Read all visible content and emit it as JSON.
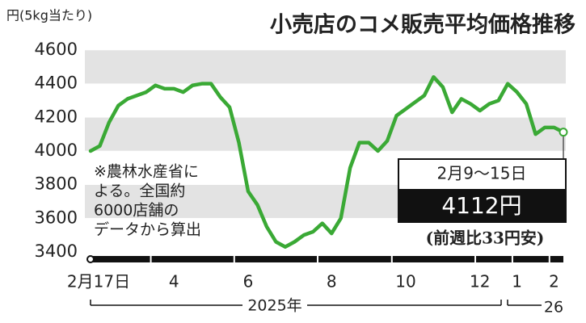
{
  "chart_data": {
    "type": "line",
    "title": "小売店のコメ販売平均価格推移",
    "unit_label": "円(5kg当たり)",
    "categories": [
      "2月17日",
      null,
      null,
      null,
      null,
      null,
      null,
      null,
      null,
      "4",
      null,
      null,
      null,
      null,
      null,
      null,
      null,
      "6",
      null,
      null,
      null,
      null,
      null,
      null,
      null,
      null,
      "8",
      null,
      null,
      null,
      null,
      null,
      null,
      null,
      "10",
      null,
      null,
      null,
      null,
      null,
      null,
      null,
      "12",
      null,
      null,
      null,
      "1",
      null,
      null,
      null,
      "2",
      null
    ],
    "year_labels": [
      "2025年",
      "26"
    ],
    "values": [
      4000,
      4030,
      4170,
      4270,
      4310,
      4330,
      4350,
      4390,
      4370,
      4370,
      4350,
      4390,
      4400,
      4400,
      4320,
      4260,
      4050,
      3760,
      3680,
      3550,
      3460,
      3430,
      3460,
      3500,
      3520,
      3570,
      3510,
      3600,
      3900,
      4050,
      4050,
      4000,
      4060,
      4210,
      4250,
      4290,
      4330,
      4440,
      4380,
      4230,
      4310,
      4280,
      4240,
      4280,
      4300,
      4400,
      4350,
      4280,
      4100,
      4140,
      4140,
      4112
    ],
    "value_labels": [
      null,
      null,
      null,
      null,
      null,
      null,
      null,
      null,
      null,
      null,
      null,
      null,
      null,
      null,
      null,
      null,
      null,
      null,
      null,
      null,
      null,
      null,
      null,
      null,
      null,
      null,
      null,
      null,
      null,
      null,
      null,
      null,
      null,
      null,
      null,
      null,
      null,
      null,
      null,
      null,
      null,
      null,
      null,
      null,
      null,
      null,
      null,
      null,
      null,
      null,
      null,
      "4112円"
    ],
    "color": "#3aa935",
    "ylim": [
      3400,
      4600
    ],
    "yticks": [
      3400,
      3600,
      3800,
      4000,
      4200,
      4400,
      4600
    ],
    "grid": true,
    "latest_period": "2月9〜15日",
    "latest_change": "(前週比33円安)",
    "note": [
      "※農林水産省に",
      "よる。全国約",
      "6000店舗の",
      "データから算出"
    ]
  }
}
